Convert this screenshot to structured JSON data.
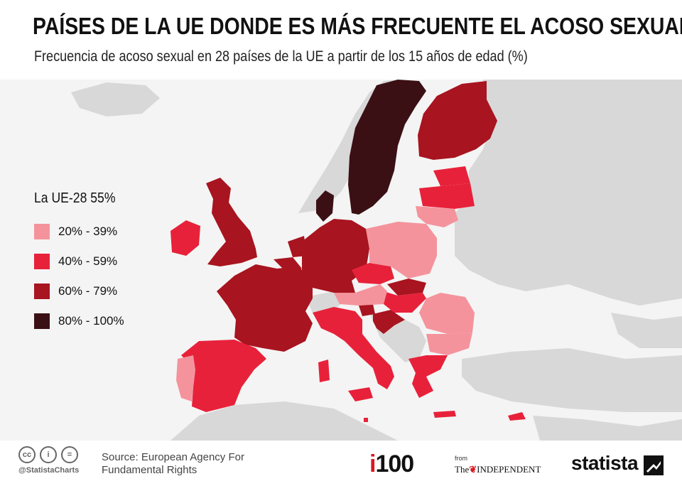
{
  "header": {
    "title": "PAÍSES DE LA UE DONDE ES MÁS FRECUENTE EL ACOSO SEXUAL",
    "subtitle": "Frecuencia de acoso sexual en 28 países de la UE a partir de los 15 años de edad (%)"
  },
  "legend": {
    "title": "La UE-28  55%",
    "items": [
      {
        "label": "20% - 39%",
        "color": "#f4939c"
      },
      {
        "label": "40% - 59%",
        "color": "#e8213a"
      },
      {
        "label": "60% - 79%",
        "color": "#a8141f"
      },
      {
        "label": "80% - 100%",
        "color": "#3b1014"
      }
    ]
  },
  "map": {
    "land_color": "#d8d8d8",
    "sea_color": "#f4f4f4",
    "regions": [
      {
        "name": "Sweden",
        "class": "80% - 100%"
      },
      {
        "name": "Denmark",
        "class": "80% - 100%"
      },
      {
        "name": "Finland",
        "class": "60% - 79%"
      },
      {
        "name": "United Kingdom",
        "class": "60% - 79%"
      },
      {
        "name": "France",
        "class": "60% - 79%"
      },
      {
        "name": "Germany",
        "class": "60% - 79%"
      },
      {
        "name": "Netherlands",
        "class": "60% - 79%"
      },
      {
        "name": "Belgium",
        "class": "60% - 79%"
      },
      {
        "name": "Luxembourg",
        "class": "60% - 79%"
      },
      {
        "name": "Slovakia",
        "class": "60% - 79%"
      },
      {
        "name": "Croatia",
        "class": "60% - 79%"
      },
      {
        "name": "Slovenia",
        "class": "60% - 79%"
      },
      {
        "name": "Ireland",
        "class": "40% - 59%"
      },
      {
        "name": "Spain",
        "class": "40% - 59%"
      },
      {
        "name": "Italy",
        "class": "40% - 59%"
      },
      {
        "name": "Estonia",
        "class": "40% - 59%"
      },
      {
        "name": "Latvia",
        "class": "40% - 59%"
      },
      {
        "name": "Czech Republic",
        "class": "40% - 59%"
      },
      {
        "name": "Hungary",
        "class": "40% - 59%"
      },
      {
        "name": "Greece",
        "class": "40% - 59%"
      },
      {
        "name": "Malta",
        "class": "40% - 59%"
      },
      {
        "name": "Cyprus",
        "class": "40% - 59%"
      },
      {
        "name": "Portugal",
        "class": "20% - 39%"
      },
      {
        "name": "Poland",
        "class": "20% - 39%"
      },
      {
        "name": "Lithuania",
        "class": "20% - 39%"
      },
      {
        "name": "Austria",
        "class": "20% - 39%"
      },
      {
        "name": "Romania",
        "class": "20% - 39%"
      },
      {
        "name": "Bulgaria",
        "class": "20% - 39%"
      }
    ]
  },
  "footer": {
    "cc_icons": [
      "cc-icon",
      "by-icon",
      "equals-icon"
    ],
    "cc_symbols": [
      "cc",
      "i",
      "="
    ],
    "handle": "@StatistaCharts",
    "source_line1": "Source: European Agency For",
    "source_line2": "Fundamental Rights",
    "i100_prefix": "i",
    "i100_suffix": "100",
    "from": "from",
    "independent_prefix": "The",
    "independent_name": "INDEPENDENT",
    "statista": "statista"
  }
}
